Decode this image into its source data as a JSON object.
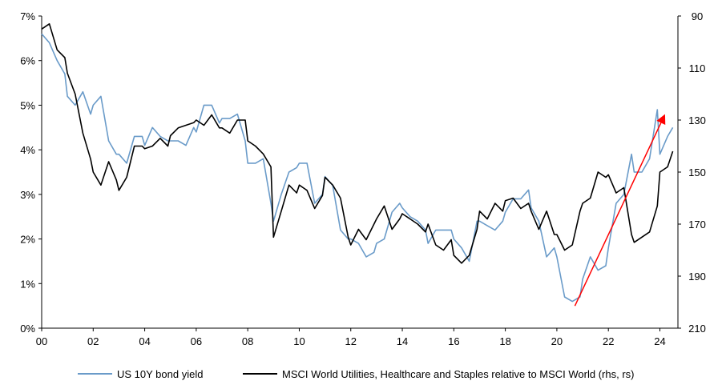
{
  "chart_data": {
    "type": "line",
    "title": "",
    "xlabel": "",
    "ylabel": "",
    "y2label": "",
    "x_tick_labels": [
      "00",
      "02",
      "04",
      "06",
      "08",
      "10",
      "12",
      "14",
      "16",
      "18",
      "20",
      "22",
      "24"
    ],
    "x_ticks_year": [
      2000,
      2002,
      2004,
      2006,
      2008,
      2010,
      2012,
      2014,
      2016,
      2018,
      2020,
      2022,
      2024
    ],
    "xlim": [
      2000,
      2024.7
    ],
    "ylim": [
      0,
      7
    ],
    "y_tick_labels": [
      "0%",
      "1%",
      "2%",
      "3%",
      "4%",
      "5%",
      "6%",
      "7%"
    ],
    "y_ticks": [
      0,
      1,
      2,
      3,
      4,
      5,
      6,
      7
    ],
    "y2lim": [
      90,
      210
    ],
    "y2_inverted": true,
    "y2_tick_labels": [
      "90",
      "110",
      "130",
      "150",
      "170",
      "190",
      "210"
    ],
    "y2_ticks": [
      90,
      110,
      130,
      150,
      170,
      190,
      210
    ],
    "legend_position": "bottom",
    "series": [
      {
        "name": "US 10Y bond yield",
        "axis": "left",
        "color": "#6a9bc9",
        "x": [
          2000.0,
          2000.3,
          2000.6,
          2000.9,
          2001.0,
          2001.3,
          2001.6,
          2001.9,
          2002.0,
          2002.3,
          2002.6,
          2002.9,
          2003.0,
          2003.3,
          2003.6,
          2003.9,
          2004.0,
          2004.3,
          2004.6,
          2004.9,
          2005.0,
          2005.3,
          2005.6,
          2005.9,
          2006.0,
          2006.3,
          2006.6,
          2006.9,
          2007.0,
          2007.3,
          2007.6,
          2007.9,
          2008.0,
          2008.3,
          2008.6,
          2008.9,
          2009.0,
          2009.3,
          2009.6,
          2009.9,
          2010.0,
          2010.3,
          2010.6,
          2010.9,
          2011.0,
          2011.3,
          2011.6,
          2011.9,
          2012.0,
          2012.3,
          2012.6,
          2012.9,
          2013.0,
          2013.3,
          2013.6,
          2013.9,
          2014.0,
          2014.3,
          2014.6,
          2014.9,
          2015.0,
          2015.3,
          2015.6,
          2015.9,
          2016.0,
          2016.3,
          2016.6,
          2016.9,
          2017.0,
          2017.3,
          2017.6,
          2017.9,
          2018.0,
          2018.3,
          2018.6,
          2018.9,
          2019.0,
          2019.3,
          2019.6,
          2019.9,
          2020.0,
          2020.3,
          2020.6,
          2020.9,
          2021.0,
          2021.3,
          2021.6,
          2021.9,
          2022.0,
          2022.3,
          2022.6,
          2022.9,
          2023.0,
          2023.3,
          2023.6,
          2023.9,
          2024.0,
          2024.3,
          2024.5
        ],
        "values": [
          6.6,
          6.4,
          6.0,
          5.7,
          5.2,
          5.0,
          5.3,
          4.8,
          5.0,
          5.2,
          4.2,
          3.9,
          3.9,
          3.7,
          4.3,
          4.3,
          4.1,
          4.5,
          4.3,
          4.2,
          4.2,
          4.2,
          4.1,
          4.5,
          4.4,
          5.0,
          5.0,
          4.6,
          4.7,
          4.7,
          4.8,
          4.2,
          3.7,
          3.7,
          3.8,
          2.8,
          2.4,
          3.0,
          3.5,
          3.6,
          3.7,
          3.7,
          2.8,
          3.0,
          3.4,
          3.2,
          2.2,
          2.0,
          2.0,
          1.9,
          1.6,
          1.7,
          1.9,
          2.0,
          2.6,
          2.8,
          2.7,
          2.5,
          2.4,
          2.2,
          1.9,
          2.2,
          2.2,
          2.2,
          2.0,
          1.8,
          1.5,
          2.4,
          2.4,
          2.3,
          2.2,
          2.4,
          2.6,
          2.9,
          2.9,
          3.1,
          2.7,
          2.4,
          1.6,
          1.8,
          1.6,
          0.7,
          0.6,
          0.7,
          1.1,
          1.6,
          1.3,
          1.4,
          1.8,
          2.8,
          3.0,
          3.9,
          3.5,
          3.5,
          3.8,
          4.9,
          3.9,
          4.3,
          4.5
        ]
      },
      {
        "name": "MSCI World Utilities, Healthcare and Staples relative to MSCI World (rhs, rs)",
        "axis": "right",
        "color": "#000000",
        "x": [
          2000.0,
          2000.3,
          2000.6,
          2000.9,
          2001.0,
          2001.3,
          2001.6,
          2001.9,
          2002.0,
          2002.3,
          2002.6,
          2002.9,
          2003.0,
          2003.3,
          2003.6,
          2003.9,
          2004.0,
          2004.3,
          2004.6,
          2004.9,
          2005.0,
          2005.3,
          2005.6,
          2005.9,
          2006.0,
          2006.3,
          2006.6,
          2006.9,
          2007.0,
          2007.3,
          2007.6,
          2007.9,
          2008.0,
          2008.3,
          2008.6,
          2008.9,
          2009.0,
          2009.3,
          2009.6,
          2009.9,
          2010.0,
          2010.3,
          2010.6,
          2010.9,
          2011.0,
          2011.3,
          2011.6,
          2011.9,
          2012.0,
          2012.3,
          2012.6,
          2012.9,
          2013.0,
          2013.3,
          2013.6,
          2013.9,
          2014.0,
          2014.3,
          2014.6,
          2014.9,
          2015.0,
          2015.3,
          2015.6,
          2015.9,
          2016.0,
          2016.3,
          2016.6,
          2016.9,
          2017.0,
          2017.3,
          2017.6,
          2017.9,
          2018.0,
          2018.3,
          2018.6,
          2018.9,
          2019.0,
          2019.3,
          2019.6,
          2019.9,
          2020.0,
          2020.3,
          2020.6,
          2020.9,
          2021.0,
          2021.3,
          2021.6,
          2021.9,
          2022.0,
          2022.3,
          2022.6,
          2022.9,
          2023.0,
          2023.3,
          2023.6,
          2023.9,
          2024.0,
          2024.3,
          2024.5
        ],
        "values": [
          95,
          93,
          103,
          106,
          112,
          120,
          135,
          145,
          150,
          155,
          146,
          153,
          157,
          152,
          140,
          140,
          141,
          140,
          137,
          140,
          136,
          133,
          132,
          131,
          130,
          132,
          128,
          133,
          133,
          135,
          130,
          130,
          138,
          140,
          143,
          148,
          175,
          165,
          155,
          158,
          155,
          157,
          164,
          159,
          152,
          155,
          160,
          175,
          178,
          172,
          176,
          170,
          168,
          163,
          172,
          168,
          166,
          168,
          170,
          173,
          170,
          178,
          180,
          176,
          182,
          185,
          182,
          172,
          165,
          168,
          162,
          165,
          161,
          160,
          164,
          162,
          165,
          172,
          165,
          174,
          174,
          180,
          178,
          165,
          162,
          160,
          150,
          152,
          151,
          158,
          156,
          174,
          177,
          175,
          173,
          163,
          150,
          148,
          142
        ]
      }
    ],
    "annotations": [
      {
        "type": "arrow",
        "color": "#ff0000",
        "from_x": 2020.7,
        "from_y": 0.5,
        "to_x": 2024.2,
        "to_y": 4.8
      }
    ]
  }
}
